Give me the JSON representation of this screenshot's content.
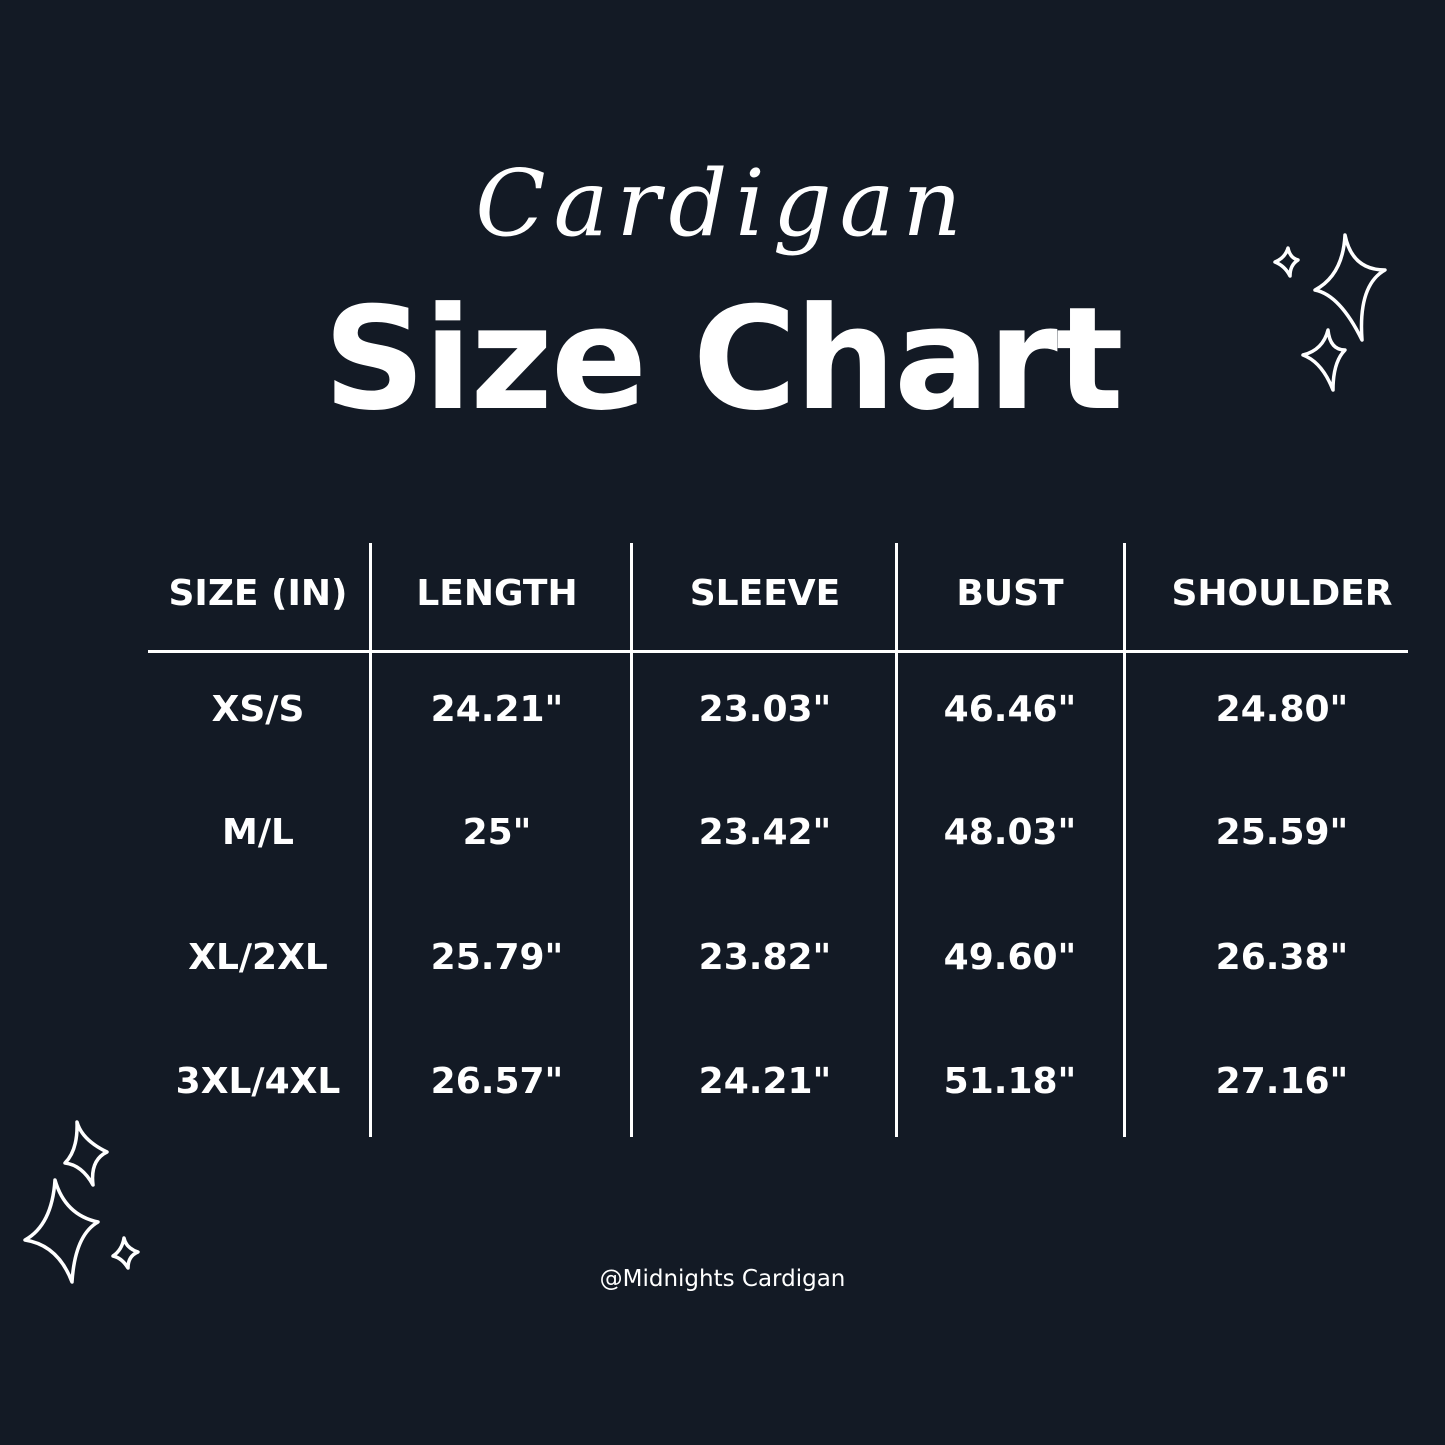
{
  "title_script": "Cardigan",
  "title_main": "Size Chart",
  "colors": {
    "background": "#131a25",
    "text": "#ffffff"
  },
  "chart_data": {
    "type": "table",
    "columns": [
      "SIZE (IN)",
      "LENGTH",
      "SLEEVE",
      "BUST",
      "SHOULDER"
    ],
    "rows": [
      [
        "XS/S",
        "24.21\"",
        "23.03\"",
        "46.46\"",
        "24.80\""
      ],
      [
        "M/L",
        "25\"",
        "23.42\"",
        "48.03\"",
        "25.59\""
      ],
      [
        "XL/2XL",
        "25.79\"",
        "23.82\"",
        "49.60\"",
        "26.38\""
      ],
      [
        "3XL/4XL",
        "26.57\"",
        "24.21\"",
        "51.18\"",
        "27.16\""
      ]
    ]
  },
  "footer": "@Midnights Cardigan",
  "decorations": [
    "sparkle-icon"
  ]
}
